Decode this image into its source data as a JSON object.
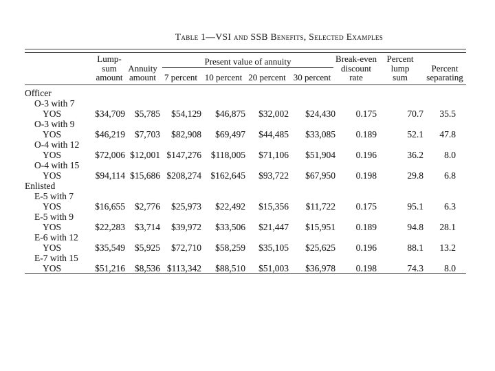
{
  "page": {
    "background": "#ffffff",
    "text_color": "#222222",
    "rule_color": "#3c3c3c"
  },
  "table": {
    "title": "Table 1—VSI and SSB Benefits, Selected Examples",
    "header": {
      "lump": [
        "Lump-",
        "sum",
        "amount"
      ],
      "annuity": [
        "Annuity",
        "amount"
      ],
      "pv_spanner": "Present value of annuity",
      "pv_cols": [
        "7 percent",
        "10 percent",
        "20 percent",
        "30 percent"
      ],
      "break_even": [
        "Break-even",
        "discount",
        "rate"
      ],
      "percent_lump": [
        "Percent",
        "lump",
        "sum"
      ],
      "percent_separating": [
        "Percent",
        "separating"
      ]
    },
    "sections": [
      {
        "label": "Officer",
        "rows": [
          {
            "rank": "O-3 with 7",
            "yos": "YOS",
            "values": [
              "$34,709",
              "$5,785",
              "$54,129",
              "$46,875",
              "$32,002",
              "$24,430",
              "0.175",
              "70.7",
              "35.5"
            ]
          },
          {
            "rank": "O-3 with 9",
            "yos": "YOS",
            "values": [
              "$46,219",
              "$7,703",
              "$82,908",
              "$69,497",
              "$44,485",
              "$33,085",
              "0.189",
              "52.1",
              "47.8"
            ]
          },
          {
            "rank": "O-4 with 12",
            "yos": "YOS",
            "values": [
              "$72,006",
              "$12,001",
              "$147,276",
              "$118,005",
              "$71,106",
              "$51,904",
              "0.196",
              "36.2",
              "8.0"
            ]
          },
          {
            "rank": "O-4 with 15",
            "yos": "YOS",
            "values": [
              "$94,114",
              "$15,686",
              "$208,274",
              "$162,645",
              "$93,722",
              "$67,950",
              "0.198",
              "29.8",
              "6.8"
            ]
          }
        ]
      },
      {
        "label": "Enlisted",
        "rows": [
          {
            "rank": "E-5 with 7",
            "yos": "YOS",
            "values": [
              "$16,655",
              "$2,776",
              "$25,973",
              "$22,492",
              "$15,356",
              "$11,722",
              "0.175",
              "95.1",
              "6.3"
            ]
          },
          {
            "rank": "E-5 with 9",
            "yos": "YOS",
            "values": [
              "$22,283",
              "$3,714",
              "$39,972",
              "$33,506",
              "$21,447",
              "$15,951",
              "0.189",
              "94.8",
              "28.1"
            ]
          },
          {
            "rank": "E-6 with 12",
            "yos": "YOS",
            "values": [
              "$35,549",
              "$5,925",
              "$72,710",
              "$58,259",
              "$35,105",
              "$25,625",
              "0.196",
              "88.1",
              "13.2"
            ]
          },
          {
            "rank": "E-7 with 15",
            "yos": "YOS",
            "values": [
              "$51,216",
              "$8,536",
              "$113,342",
              "$88,510",
              "$51,003",
              "$36,978",
              "0.198",
              "74.3",
              "8.0"
            ]
          }
        ]
      }
    ]
  }
}
